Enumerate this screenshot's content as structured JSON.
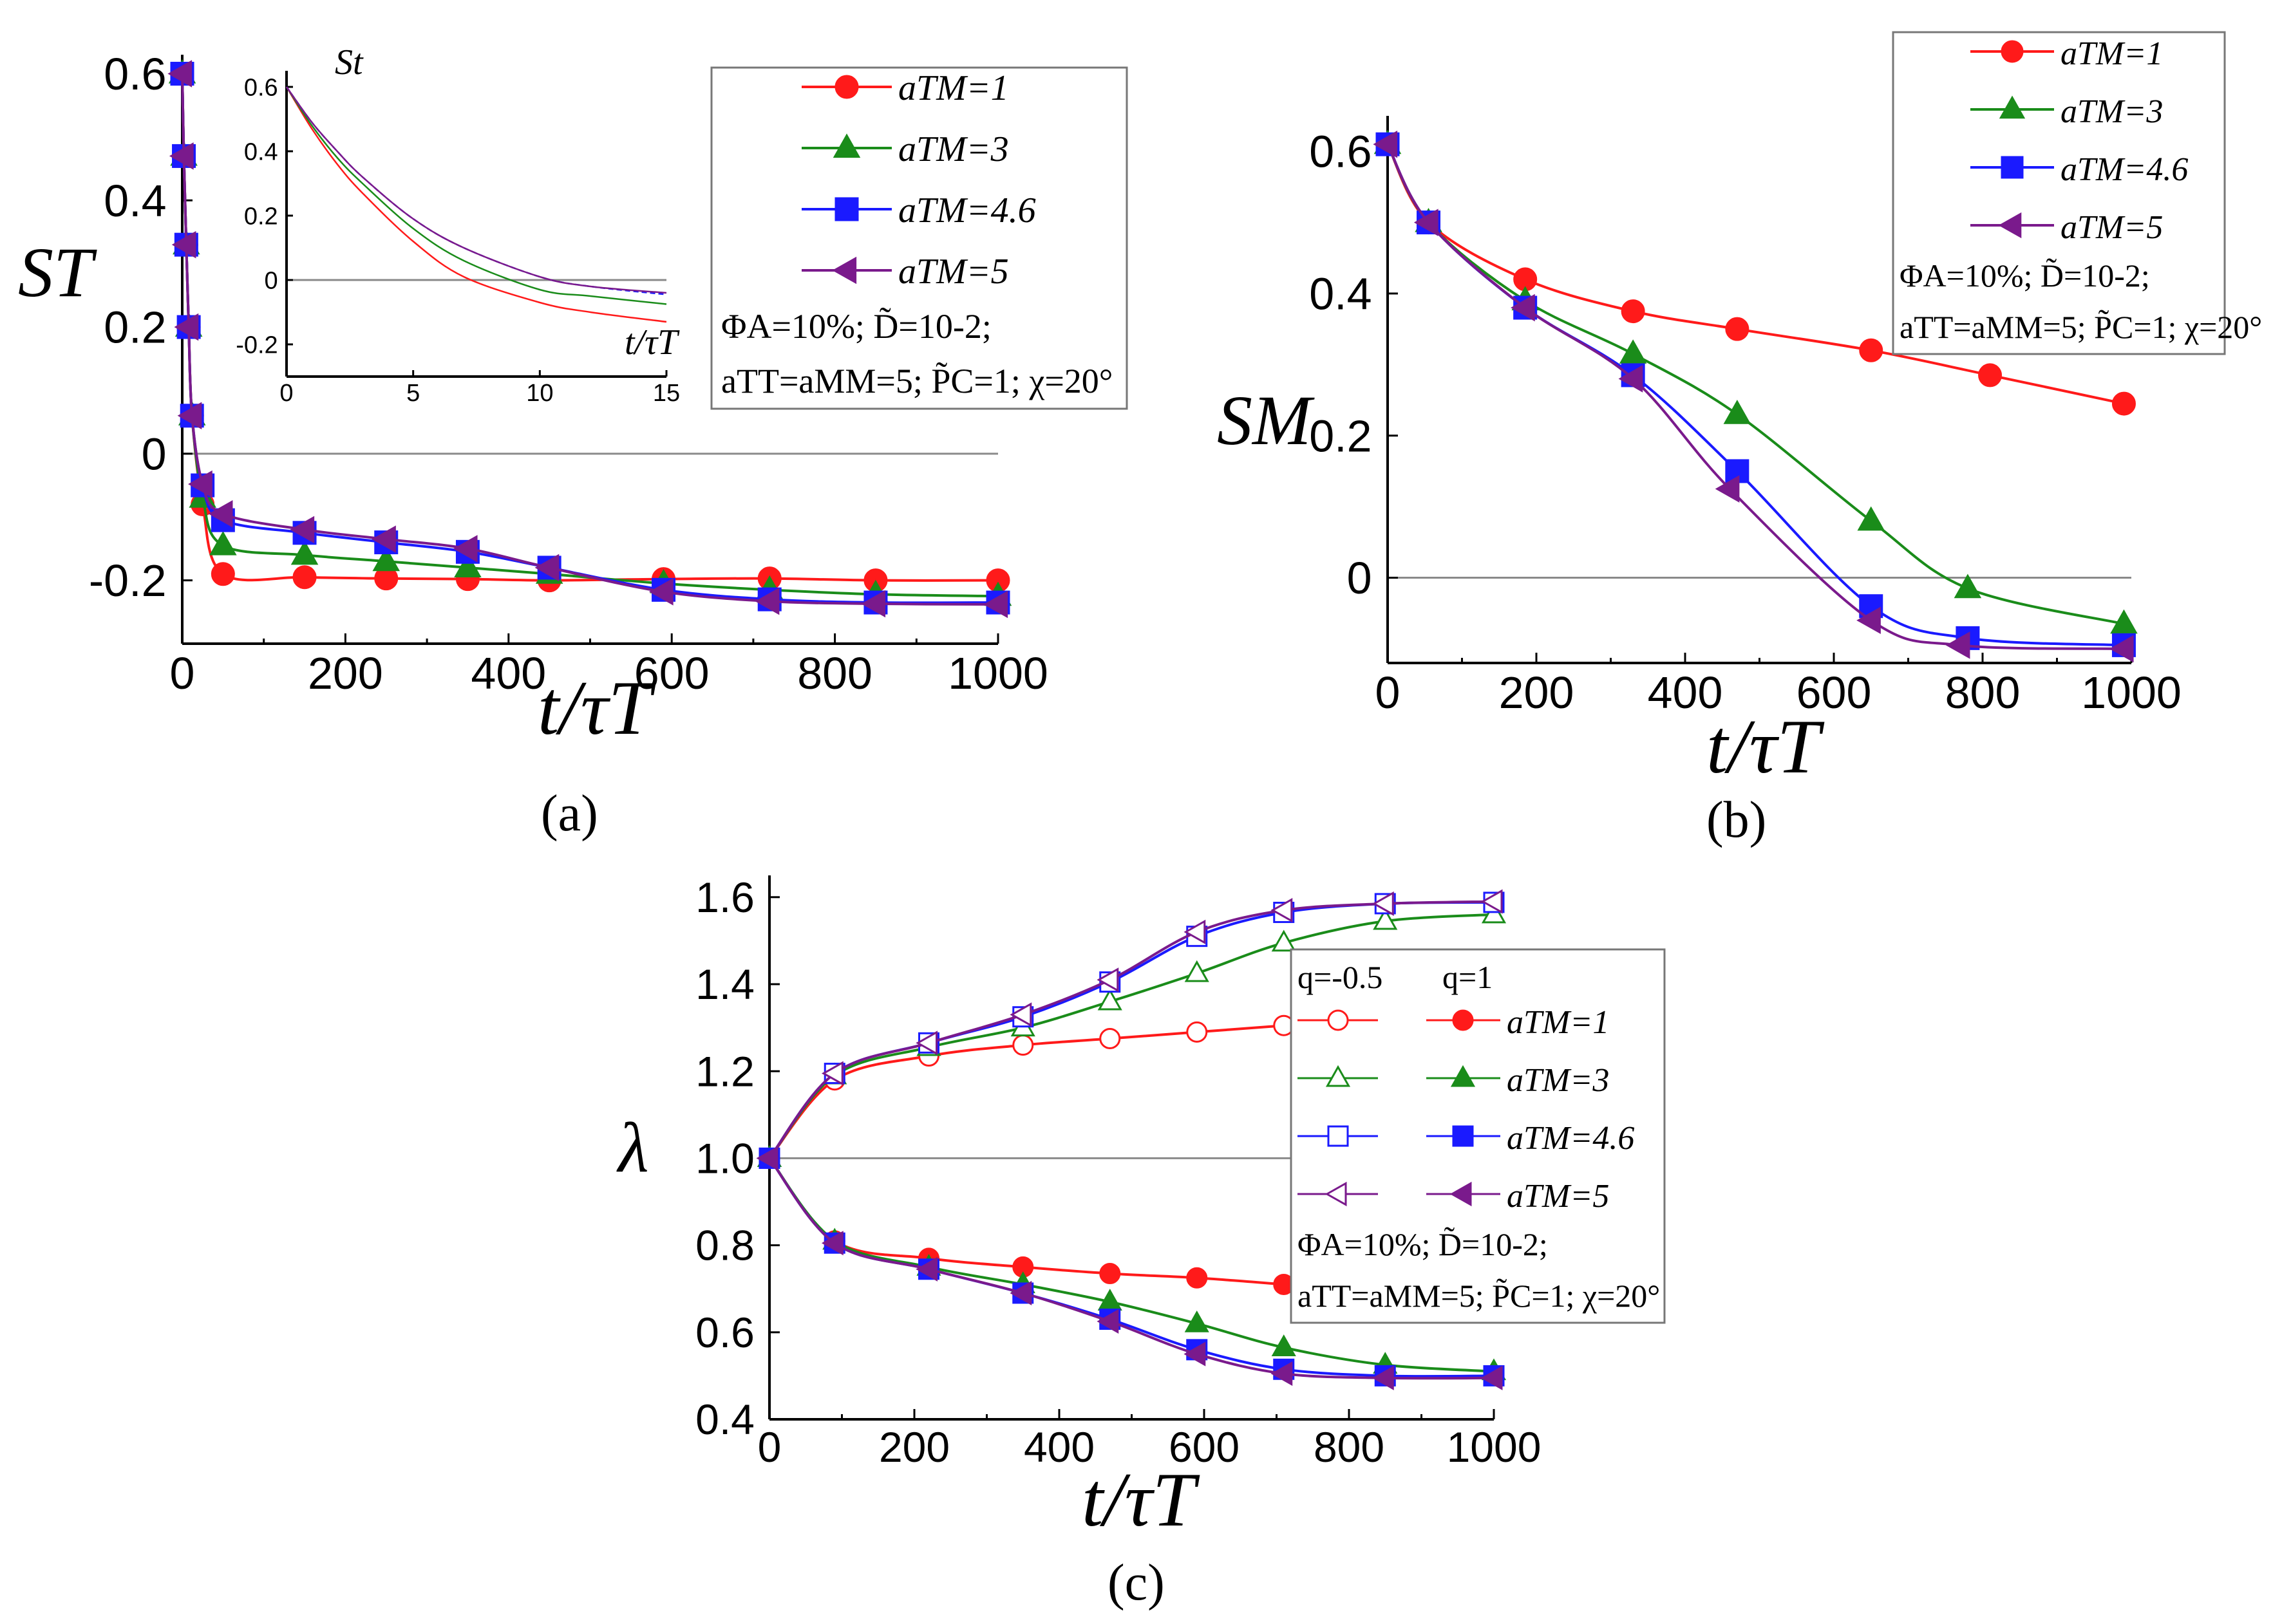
{
  "chart_data": [
    {
      "id": "a",
      "type": "line",
      "panel_label": "(a)",
      "xlabel": "t/τT",
      "ylabel": "ST",
      "xlim": [
        0,
        1000
      ],
      "ylim": [
        -0.3,
        0.63
      ],
      "xticks": [
        "0",
        "200",
        "400",
        "600",
        "800",
        "1000"
      ],
      "yticks": [
        "-0.2",
        "0",
        "0.2",
        "0.4",
        "0.6"
      ],
      "colors": {
        "aTM=1": "#ff1a1a",
        "aTM=3": "#1a8c1a",
        "aTM=4.6": "#1a1aff",
        "aTM=5": "#7a1a8c"
      },
      "legend": {
        "position": "top-right",
        "entries": [
          {
            "label": "aTM=1",
            "marker": "circle"
          },
          {
            "label": "aTM=3",
            "marker": "triangle-up"
          },
          {
            "label": "aTM=4.6",
            "marker": "square"
          },
          {
            "label": "aTM=5",
            "marker": "triangle-left"
          }
        ],
        "param_line1": "ΦA=10%; D̃=10-2;",
        "param_line2": "aTT=aMM=5; P̃C=1; χ=20°"
      },
      "series": [
        {
          "name": "aTM=1",
          "x": [
            0,
            2,
            5,
            8,
            12,
            25,
            50,
            150,
            250,
            350,
            450,
            590,
            720,
            850,
            1000
          ],
          "y": [
            0.6,
            0.47,
            0.33,
            0.2,
            0.06,
            -0.08,
            -0.19,
            -0.195,
            -0.197,
            -0.198,
            -0.2,
            -0.198,
            -0.197,
            -0.2,
            -0.2
          ]
        },
        {
          "name": "aTM=3",
          "x": [
            0,
            2,
            5,
            8,
            12,
            25,
            50,
            150,
            250,
            350,
            450,
            590,
            720,
            850,
            1000
          ],
          "y": [
            0.6,
            0.47,
            0.33,
            0.2,
            0.06,
            -0.07,
            -0.145,
            -0.16,
            -0.17,
            -0.18,
            -0.19,
            -0.205,
            -0.215,
            -0.222,
            -0.225
          ]
        },
        {
          "name": "aTM=4.6",
          "x": [
            0,
            2,
            5,
            8,
            12,
            25,
            50,
            150,
            250,
            350,
            450,
            590,
            720,
            850,
            1000
          ],
          "y": [
            0.6,
            0.47,
            0.33,
            0.2,
            0.06,
            -0.05,
            -0.105,
            -0.125,
            -0.14,
            -0.155,
            -0.18,
            -0.215,
            -0.23,
            -0.235,
            -0.235
          ]
        },
        {
          "name": "aTM=5",
          "x": [
            0,
            2,
            5,
            8,
            12,
            25,
            50,
            150,
            250,
            350,
            450,
            590,
            720,
            850,
            1000
          ],
          "y": [
            0.6,
            0.47,
            0.33,
            0.2,
            0.06,
            -0.048,
            -0.095,
            -0.12,
            -0.135,
            -0.15,
            -0.18,
            -0.218,
            -0.233,
            -0.237,
            -0.238
          ]
        }
      ],
      "inset": {
        "ylabel": "St",
        "xlabel": "t/τT",
        "xlim": [
          0,
          15
        ],
        "ylim": [
          -0.3,
          0.65
        ],
        "xticks": [
          "0",
          "5",
          "10",
          "15"
        ],
        "yticks": [
          "-0.2",
          "0",
          "0.2",
          "0.4",
          "0.6"
        ],
        "series": [
          {
            "name": "aTM=1",
            "x": [
              0,
              1,
              2,
              3,
              5,
              7,
              10,
              12,
              15
            ],
            "y": [
              0.6,
              0.47,
              0.36,
              0.27,
              0.12,
              0.01,
              -0.07,
              -0.1,
              -0.13
            ]
          },
          {
            "name": "aTM=3",
            "x": [
              0,
              1,
              2,
              3,
              5,
              7,
              10,
              12,
              15
            ],
            "y": [
              0.6,
              0.48,
              0.38,
              0.3,
              0.16,
              0.06,
              -0.03,
              -0.05,
              -0.075
            ]
          },
          {
            "name": "aTM=4.6",
            "x": [
              0,
              1,
              2,
              3,
              5,
              7,
              10,
              12,
              15
            ],
            "y": [
              0.6,
              0.49,
              0.4,
              0.32,
              0.19,
              0.1,
              0.01,
              -0.02,
              -0.045
            ]
          },
          {
            "name": "aTM=5",
            "x": [
              0,
              1,
              2,
              3,
              5,
              7,
              10,
              12,
              15
            ],
            "y": [
              0.6,
              0.49,
              0.4,
              0.32,
              0.19,
              0.1,
              0.01,
              -0.02,
              -0.04
            ]
          }
        ]
      }
    },
    {
      "id": "b",
      "type": "line",
      "panel_label": "(b)",
      "xlabel": "t/τT",
      "ylabel": "SM",
      "xlim": [
        0,
        1000
      ],
      "ylim": [
        -0.12,
        0.65
      ],
      "xticks": [
        "0",
        "200",
        "400",
        "600",
        "800",
        "1000"
      ],
      "yticks": [
        "0",
        "0.2",
        "0.4",
        "0.6"
      ],
      "legend": {
        "position": "top-right",
        "entries": [
          {
            "label": "aTM=1",
            "marker": "circle"
          },
          {
            "label": "aTM=3",
            "marker": "triangle-up"
          },
          {
            "label": "aTM=4.6",
            "marker": "square"
          },
          {
            "label": "aTM=5",
            "marker": "triangle-left"
          }
        ],
        "param_line1": "ΦA=10%; D̃=10-2;",
        "param_line2": "aTT=aMM=5; P̃C=1; χ=20°"
      },
      "series": [
        {
          "name": "aTM=1",
          "x": [
            0,
            55,
            185,
            330,
            470,
            650,
            810,
            990
          ],
          "y": [
            0.61,
            0.5,
            0.42,
            0.375,
            0.35,
            0.32,
            0.285,
            0.245
          ]
        },
        {
          "name": "aTM=3",
          "x": [
            0,
            55,
            185,
            330,
            470,
            650,
            780,
            990
          ],
          "y": [
            0.61,
            0.5,
            0.39,
            0.315,
            0.23,
            0.08,
            -0.015,
            -0.065
          ]
        },
        {
          "name": "aTM=4.6",
          "x": [
            0,
            55,
            185,
            330,
            470,
            650,
            780,
            990
          ],
          "y": [
            0.61,
            0.5,
            0.38,
            0.285,
            0.15,
            -0.04,
            -0.085,
            -0.095
          ]
        },
        {
          "name": "aTM=5",
          "x": [
            0,
            55,
            185,
            330,
            460,
            650,
            770,
            990
          ],
          "y": [
            0.61,
            0.5,
            0.38,
            0.28,
            0.125,
            -0.06,
            -0.095,
            -0.1
          ]
        }
      ]
    },
    {
      "id": "c",
      "type": "line",
      "panel_label": "(c)",
      "xlabel": "t/τT",
      "ylabel": "λ",
      "xlim": [
        0,
        1000
      ],
      "ylim": [
        0.4,
        1.65
      ],
      "xticks": [
        "0",
        "200",
        "400",
        "600",
        "800",
        "1000"
      ],
      "yticks": [
        "0.4",
        "0.6",
        "0.8",
        "1.0",
        "1.2",
        "1.4",
        "1.6"
      ],
      "legend": {
        "position": "center-right",
        "col1_header": "q=-0.5",
        "col2_header": "q=1",
        "entries": [
          {
            "label": "aTM=1",
            "marker": "circle"
          },
          {
            "label": "aTM=3",
            "marker": "triangle-up"
          },
          {
            "label": "aTM=4.6",
            "marker": "square"
          },
          {
            "label": "aTM=5",
            "marker": "triangle-left"
          }
        ],
        "param_line1": "ΦA=10%; D̃=10-2;",
        "param_line2": "aTT=aMM=5; P̃C=1; χ=20°"
      },
      "series": [
        {
          "name": "aTM=1 q=-0.5",
          "x": [
            0,
            90,
            220,
            350,
            470,
            590,
            710
          ],
          "y": [
            1.0,
            1.18,
            1.235,
            1.26,
            1.275,
            1.29,
            1.305
          ]
        },
        {
          "name": "aTM=3 q=-0.5",
          "x": [
            0,
            90,
            220,
            350,
            470,
            590,
            710,
            850,
            1000
          ],
          "y": [
            1.0,
            1.19,
            1.255,
            1.3,
            1.36,
            1.425,
            1.495,
            1.545,
            1.56
          ]
        },
        {
          "name": "aTM=4.6 q=-0.5",
          "x": [
            0,
            90,
            220,
            350,
            470,
            590,
            710,
            850,
            1000
          ],
          "y": [
            1.0,
            1.195,
            1.265,
            1.325,
            1.405,
            1.51,
            1.565,
            1.585,
            1.588
          ]
        },
        {
          "name": "aTM=5 q=-0.5",
          "x": [
            0,
            90,
            220,
            350,
            470,
            590,
            710,
            850,
            1000
          ],
          "y": [
            1.0,
            1.195,
            1.265,
            1.33,
            1.41,
            1.52,
            1.57,
            1.585,
            1.59
          ]
        },
        {
          "name": "aTM=1 q=1",
          "x": [
            0,
            90,
            220,
            350,
            470,
            590,
            710
          ],
          "y": [
            1.0,
            0.81,
            0.77,
            0.75,
            0.735,
            0.725,
            0.71
          ]
        },
        {
          "name": "aTM=3 q=1",
          "x": [
            0,
            90,
            220,
            350,
            470,
            590,
            710,
            850,
            1000
          ],
          "y": [
            1.0,
            0.81,
            0.75,
            0.71,
            0.67,
            0.62,
            0.565,
            0.525,
            0.51
          ]
        },
        {
          "name": "aTM=4.6 q=1",
          "x": [
            0,
            90,
            220,
            350,
            470,
            590,
            710,
            850,
            1000
          ],
          "y": [
            1.0,
            0.805,
            0.745,
            0.69,
            0.63,
            0.56,
            0.515,
            0.5,
            0.5
          ]
        },
        {
          "name": "aTM=5 q=1",
          "x": [
            0,
            90,
            220,
            350,
            470,
            590,
            710,
            850,
            1000
          ],
          "y": [
            1.0,
            0.805,
            0.745,
            0.69,
            0.625,
            0.55,
            0.505,
            0.495,
            0.495
          ]
        }
      ]
    }
  ]
}
